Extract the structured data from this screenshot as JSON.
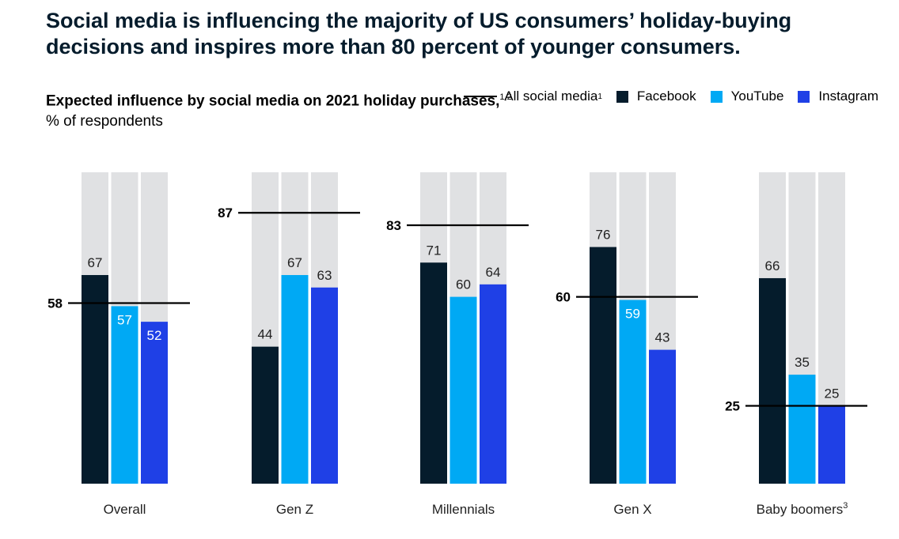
{
  "headline": "Social media is influencing the majority of US consumers’ holiday-buying decisions and inspires more than 80 percent of younger consumers.",
  "subtitle": {
    "bold": "Expected influence by social media on 2021 holiday purchases,",
    "sup": "1,2",
    "rest": " % of respondents"
  },
  "legend": {
    "all": "All social media",
    "all_sup": "1",
    "facebook": "Facebook",
    "youtube": "YouTube",
    "instagram": "Instagram"
  },
  "colors": {
    "facebook": "#051c2c",
    "youtube": "#00a9f4",
    "instagram": "#1f40e6",
    "track": "#e0e1e3",
    "line": "#000000"
  },
  "chart_data": {
    "type": "bar",
    "categories": [
      "Overall",
      "Gen Z",
      "Millennials",
      "Gen X",
      "Baby boomers"
    ],
    "category_sups": [
      "",
      "",
      "",
      "",
      "3"
    ],
    "series": [
      {
        "name": "Facebook",
        "values": [
          67,
          44,
          71,
          76,
          66
        ]
      },
      {
        "name": "YouTube",
        "values": [
          57,
          67,
          60,
          59,
          35
        ]
      },
      {
        "name": "Instagram",
        "values": [
          52,
          63,
          64,
          43,
          25
        ]
      }
    ],
    "all_social_media": [
      58,
      87,
      83,
      60,
      25
    ],
    "ylim": [
      0,
      100
    ]
  }
}
